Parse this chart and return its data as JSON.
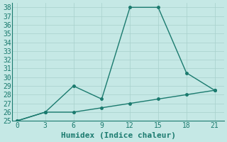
{
  "xlabel": "Humidex (Indice chaleur)",
  "line1_x": [
    0,
    3,
    6,
    9,
    12,
    15,
    18,
    21
  ],
  "line1_y": [
    25,
    26,
    29,
    27.5,
    38,
    38,
    30.5,
    28.5
  ],
  "line2_x": [
    0,
    3,
    6,
    9,
    12,
    15,
    18,
    21
  ],
  "line2_y": [
    25,
    26,
    26,
    26.5,
    27,
    27.5,
    28,
    28.5
  ],
  "line_color": "#1a7a6e",
  "background_color": "#c5e8e5",
  "grid_color": "#a8d0cc",
  "xlim": [
    -0.5,
    22
  ],
  "ylim": [
    25,
    38.5
  ],
  "xticks": [
    0,
    3,
    6,
    9,
    12,
    15,
    18,
    21
  ],
  "yticks": [
    25,
    26,
    27,
    28,
    29,
    30,
    31,
    32,
    33,
    34,
    35,
    36,
    37,
    38
  ],
  "xlabel_fontsize": 8,
  "tick_fontsize": 7
}
